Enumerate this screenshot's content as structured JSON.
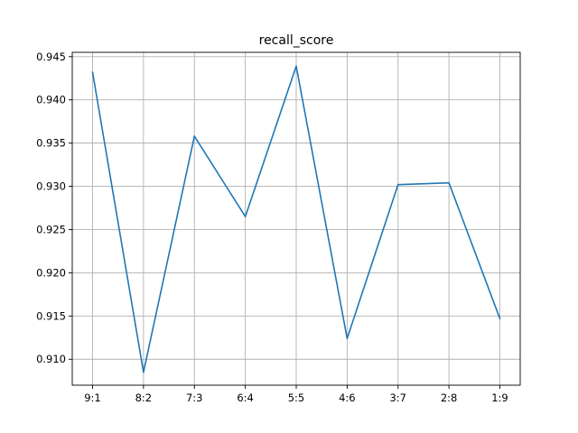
{
  "chart_data": {
    "type": "line",
    "title": "recall_score",
    "xlabel": "",
    "ylabel": "",
    "categories": [
      "9:1",
      "8:2",
      "7:3",
      "6:4",
      "5:5",
      "4:6",
      "3:7",
      "2:8",
      "1:9"
    ],
    "series": [
      {
        "values": [
          0.9432,
          0.9085,
          0.9358,
          0.9265,
          0.9439,
          0.9124,
          0.9302,
          0.9304,
          0.9147
        ]
      }
    ],
    "ylim": [
      0.907,
      0.9455
    ],
    "yticks": [
      "0.910",
      "0.915",
      "0.920",
      "0.925",
      "0.930",
      "0.935",
      "0.940",
      "0.945"
    ],
    "grid": true,
    "legend": "none",
    "colors": {
      "line": "#1f77b4",
      "grid": "#b0b0b0",
      "axes": "#000000"
    }
  }
}
